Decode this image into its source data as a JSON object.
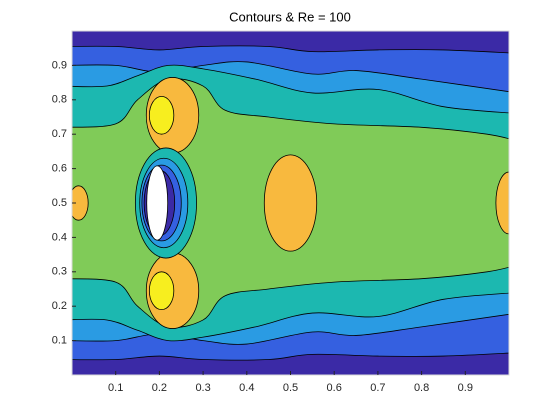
{
  "chart_data": {
    "type": "contour",
    "title": "Contours & Re = 100",
    "xlim": [
      0,
      1
    ],
    "ylim": [
      0,
      1
    ],
    "xticks": [
      0.1,
      0.2,
      0.3,
      0.4,
      0.5,
      0.6,
      0.7,
      0.8,
      0.9
    ],
    "yticks": [
      0.1,
      0.2,
      0.3,
      0.4,
      0.5,
      0.6,
      0.7,
      0.8,
      0.9
    ],
    "level_colors": [
      "#3b2aa6",
      "#3560e0",
      "#2a9be3",
      "#1cb8b0",
      "#80cb58",
      "#f8b93e",
      "#f7ee1f"
    ]
  }
}
